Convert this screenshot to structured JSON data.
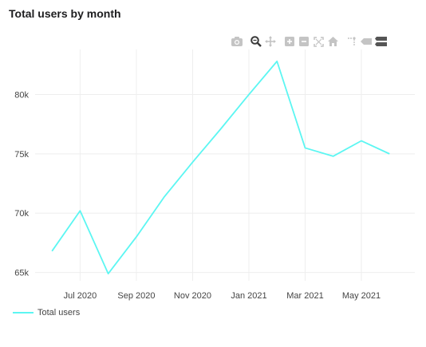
{
  "title": "Total users by month",
  "modebar": [
    {
      "name": "camera-icon",
      "label": "camera"
    },
    {
      "name": "zoom-icon",
      "label": "zoom"
    },
    {
      "name": "pan-icon",
      "label": "pan"
    },
    {
      "name": "zoom-in-icon",
      "label": "zoom in"
    },
    {
      "name": "zoom-out-icon",
      "label": "zoom out"
    },
    {
      "name": "autoscale-icon",
      "label": "autoscale"
    },
    {
      "name": "home-icon",
      "label": "reset axes"
    },
    {
      "name": "spike-lines-icon",
      "label": "spike lines"
    },
    {
      "name": "hover-closest-icon",
      "label": "show closest"
    },
    {
      "name": "hover-compare-icon",
      "label": "compare"
    }
  ],
  "chart_data": {
    "type": "line",
    "title": "Total users by month",
    "x": [
      "2020-06",
      "2020-07",
      "2020-08",
      "2020-09",
      "2020-10",
      "2020-11",
      "2020-12",
      "2021-01",
      "2021-02",
      "2021-03",
      "2021-04",
      "2021-05",
      "2021-06"
    ],
    "xticks": [
      "Jul 2020",
      "Sep 2020",
      "Nov 2020",
      "Jan 2021",
      "Mar 2021",
      "May 2021"
    ],
    "series": [
      {
        "name": "Total users",
        "color": "#5cf6f2",
        "values": [
          66800,
          70200,
          64900,
          68000,
          71400,
          74300,
          77100,
          80000,
          82800,
          75500,
          74800,
          76100,
          75000
        ]
      }
    ],
    "yticks": [
      "65k",
      "70k",
      "75k",
      "80k"
    ],
    "ylim": [
      64300,
      83800
    ],
    "grid": true,
    "legend": "bottom-left"
  }
}
